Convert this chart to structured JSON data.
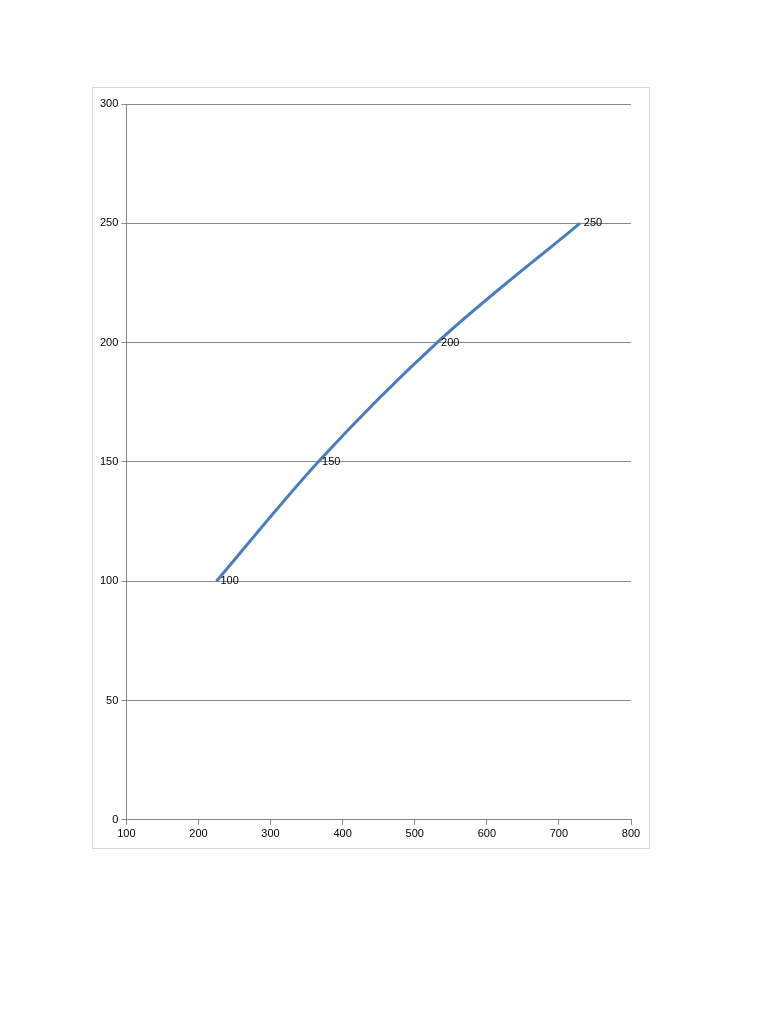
{
  "chart_data": {
    "type": "line",
    "x": [
      225,
      366,
      531,
      729
    ],
    "series": [
      {
        "color": "#4a7ebb",
        "values": [
          100,
          150,
          200,
          250
        ]
      }
    ],
    "xlim": [
      100,
      800
    ],
    "xticks": [
      100,
      200,
      300,
      400,
      500,
      600,
      700,
      800
    ],
    "ylim": [
      0,
      300
    ],
    "yticks": [
      0,
      50,
      100,
      150,
      200,
      250,
      300
    ],
    "grid": "y",
    "legend": false,
    "marker": "none",
    "line_style": "solid",
    "data_labels": true
  }
}
